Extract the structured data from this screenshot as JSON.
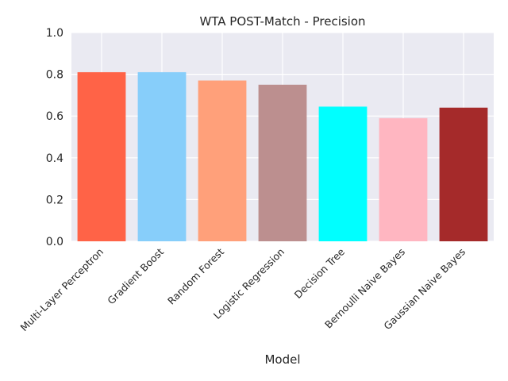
{
  "chart_data": {
    "type": "bar",
    "title": "WTA POST-Match - Precision",
    "xlabel": "Model",
    "ylabel": "",
    "ylim": [
      0,
      1.0
    ],
    "yticks": [
      "0.0",
      "0.2",
      "0.4",
      "0.6",
      "0.8",
      "1.0"
    ],
    "categories": [
      "Multi-Layer Perceptron",
      "Gradient Boost",
      "Random Forest",
      "Logistic Regression",
      "Decision Tree",
      "Bernoulli Naive Bayes",
      "Gaussian Naive Bayes"
    ],
    "values": [
      0.81,
      0.81,
      0.77,
      0.75,
      0.645,
      0.59,
      0.64
    ],
    "colors": [
      "#ff6347",
      "#87cefa",
      "#ffa07a",
      "#bc8f8f",
      "#00ffff",
      "#ffb6c1",
      "#a52a2a"
    ],
    "background": "#eaeaf2",
    "grid": true
  }
}
